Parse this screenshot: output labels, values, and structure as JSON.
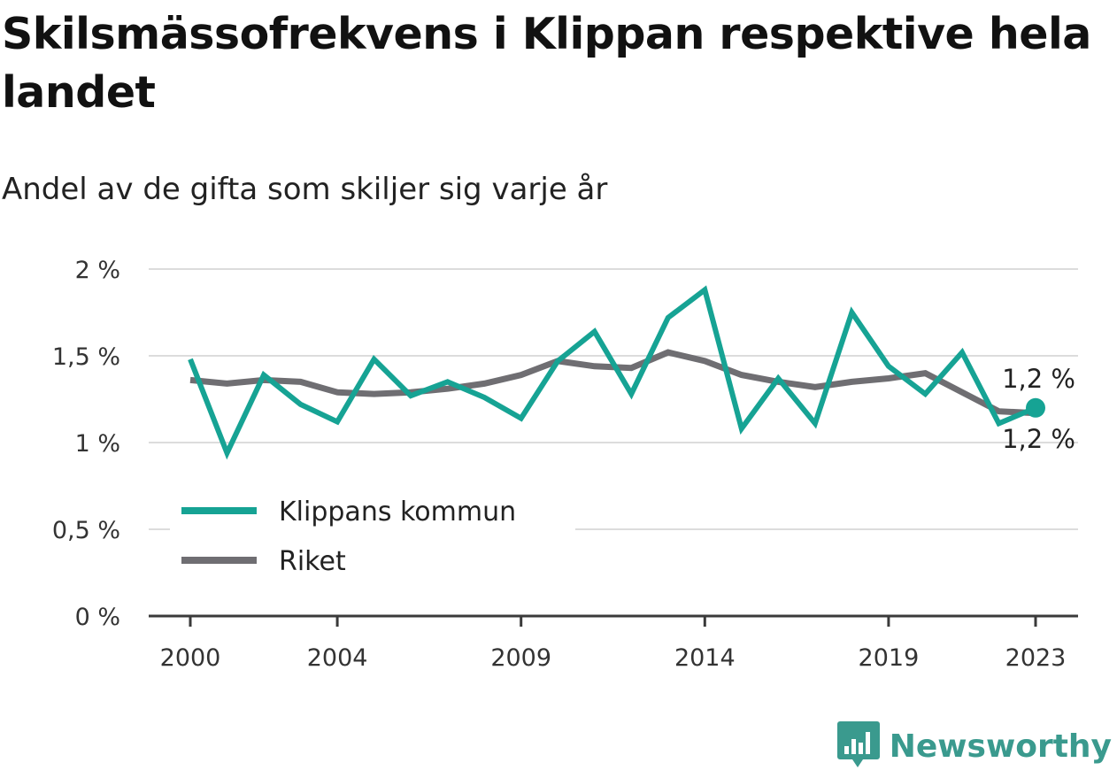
{
  "title": "Skilsmässofrekvens i Klippan respektive hela landet",
  "subtitle": "Andel av de gifta som skiljer sig varje år",
  "brand": {
    "name": "Newsworthy",
    "color": "#3a9a8e",
    "icon": "bar-chart-speech-bubble-icon"
  },
  "chart_data": {
    "type": "line",
    "x": [
      2000,
      2001,
      2002,
      2003,
      2004,
      2005,
      2006,
      2007,
      2008,
      2009,
      2010,
      2011,
      2012,
      2013,
      2014,
      2015,
      2016,
      2017,
      2018,
      2019,
      2020,
      2021,
      2022,
      2023
    ],
    "x_ticks": [
      2000,
      2004,
      2009,
      2014,
      2019,
      2023
    ],
    "x_tick_labels": [
      "2000",
      "2004",
      "2009",
      "2014",
      "2019",
      "2023"
    ],
    "y_ticks": [
      0,
      0.5,
      1,
      1.5,
      2
    ],
    "y_tick_labels": [
      "0 %",
      "0,5 %",
      "1 %",
      "1,5 %",
      "2 %"
    ],
    "ylim": [
      0,
      2
    ],
    "xlim": [
      2000,
      2023
    ],
    "grid": true,
    "legend_position": "bottom-left",
    "series": [
      {
        "name": "Klippans kommun",
        "color": "#16a394",
        "values": [
          1.48,
          0.94,
          1.39,
          1.22,
          1.12,
          1.48,
          1.27,
          1.35,
          1.26,
          1.14,
          1.47,
          1.64,
          1.28,
          1.72,
          1.88,
          1.08,
          1.37,
          1.11,
          1.75,
          1.44,
          1.28,
          1.52,
          1.11,
          1.2
        ],
        "end_label": "1,2 %"
      },
      {
        "name": "Riket",
        "color": "#6f6e72",
        "values": [
          1.36,
          1.34,
          1.36,
          1.35,
          1.29,
          1.28,
          1.29,
          1.31,
          1.34,
          1.39,
          1.47,
          1.44,
          1.43,
          1.52,
          1.47,
          1.39,
          1.35,
          1.32,
          1.35,
          1.37,
          1.4,
          1.29,
          1.18,
          1.17
        ],
        "end_label": "1,2 %"
      }
    ]
  }
}
